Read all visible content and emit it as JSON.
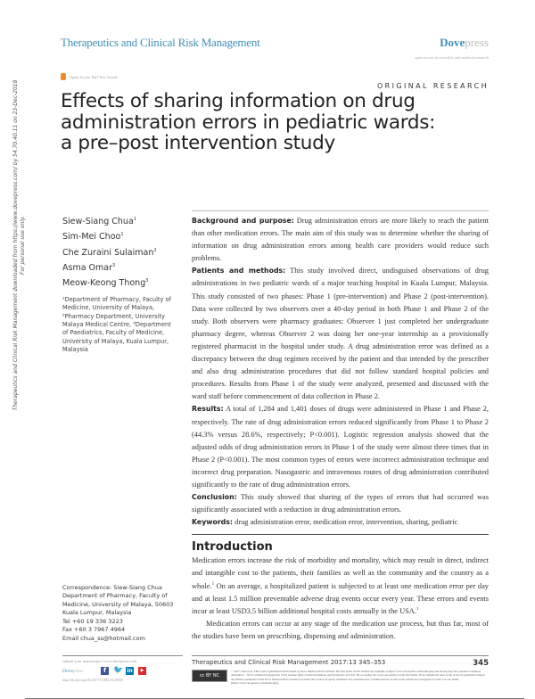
{
  "header": {
    "journal": "Therapeutics and Clinical Risk Management",
    "publisher_a": "Dove",
    "publisher_b": "press",
    "tagline": "open access to scientific and medical research",
    "open_access": "Open Access Full Text Article",
    "article_type": "ORIGINAL RESEARCH"
  },
  "title_lines": [
    "Effects of sharing information on drug",
    "administration errors in pediatric wards:",
    "a pre–post intervention study"
  ],
  "side_notice": [
    "Therapeutics and Clinical Risk Management downloaded from https://www.dovepress.com/ by 54.70.40.11 on 23-Dec-2018",
    "For personal use only."
  ],
  "authors": [
    {
      "name": "Siew-Siang Chua",
      "aff": "1"
    },
    {
      "name": "Sim-Mei Choo",
      "aff": "1"
    },
    {
      "name": "Che Zuraini Sulaiman",
      "aff": "2"
    },
    {
      "name": "Asma Omar",
      "aff": "3"
    },
    {
      "name": "Meow-Keong Thong",
      "aff": "3"
    }
  ],
  "affiliations": "¹Department of Pharmacy, Faculty of Medicine, University of Malaya, ²Pharmacy Department, University Malaya Medical Centre, ³Department of Paediatrics, Faculty of Medicine, University of Malaya, Kuala Lumpur, Malaysia",
  "abstract": {
    "background_label": "Background and purpose:",
    "background": "Drug administration errors are more likely to reach the patient than other medication errors. The main aim of this study was to determine whether the sharing of information on drug administration errors among health care providers would reduce such problems.",
    "methods_label": "Patients and methods:",
    "methods": "This study involved direct, undisguised observations of drug administrations in two pediatric wards of a major teaching hospital in Kuala Lumpur, Malaysia. This study consisted of two phases: Phase 1 (pre-intervention) and Phase 2 (post-intervention). Data were collected by two observers over a 40-day period in both Phase 1 and Phase 2 of the study. Both observers were pharmacy graduates: Observer 1 just completed her undergraduate pharmacy degree, whereas Observer 2 was doing her one-year internship as a provisionally registered pharmacist in the hospital under study. A drug administration error was defined as a discrepancy between the drug regimen received by the patient and that intended by the prescriber and also drug administration procedures that did not follow standard hospital policies and procedures. Results from Phase 1 of the study were analyzed, presented and discussed with the ward staff before commencement of data collection in Phase 2.",
    "results_label": "Results:",
    "results": "A total of 1,284 and 1,401 doses of drugs were administered in Phase 1 and Phase 2, respectively. The rate of drug administration errors reduced significantly from Phase 1 to Phase 2 (44.3% versus 28.6%, respectively; P<0.001). Logistic regression analysis showed that the adjusted odds of drug administration errors in Phase 1 of the study were almost three times that in Phase 2 (P<0.001). The most common types of errors were incorrect administration technique and incorrect drug preparation. Nasogastric and intravenous routes of drug administration contributed significantly to the rate of drug administration errors.",
    "conclusion_label": "Conclusion:",
    "conclusion": "This study showed that sharing of the types of errors that had occurred was significantly associated with a reduction in drug administration errors.",
    "keywords_label": "Keywords:",
    "keywords": "drug administration error, medication error, intervention, sharing, pediatric"
  },
  "introduction": {
    "heading": "Introduction",
    "p1": "Medication errors increase the risk of morbidity and mortality, which may result in direct, indirect and intangible cost to the patients, their families as well as the community and the country as a whole.",
    "p1_ref": "1",
    "p1b": " On an average, a hospitalized patient is subjected to at least one medication error per day and at least 1.5 million preventable adverse drug events occur every year. These errors and events incur at least USD3.5 billion additional hospital costs annually in the USA.",
    "p1b_ref": "1",
    "p2": "Medication errors can occur at any stage of the medication use process, but thus far, most of the studies have been on prescribing, dispensing and administration."
  },
  "correspondence": [
    "Correspondence: Siew-Siang Chua",
    "Department of Pharmacy, Faculty of",
    "Medicine, University of Malaya, 50603",
    "Kuala Lumpur, Malaysia",
    "Tel +60 19 336 3223",
    "Fax +60 3 7967 4964",
    "Email chua_ss@hotmail.com"
  ],
  "footer": {
    "submit": "submit your manuscript | www.dovepress.com",
    "dove_a": "Dove",
    "dove_b": "press",
    "doi": "http://dx.doi.org/10.2147/TCRM.S128004",
    "citation": "Therapeutics and Clinical Risk Management 2017:13 345–353",
    "page": "345",
    "cc_label": "cc BY NC",
    "license": "© 2017 Chua et al. This work is published and licensed by Dove Medical Press Limited. The full terms of this license are available at https://www.dovepress.com/terms.php and incorporate the Creative Commons Attribution – Non Commercial (unported, v3.0) License (http://creativecommons.org/licenses/by-nc/3.0/). By accessing the work you hereby accept the Terms. Non-commercial uses of the work are permitted without any further permission from Dove Medical Press Limited, provided the work is properly attributed. For permission for commercial use of this work, please see paragraphs 4.2 and 5 of our Terms (https://www.dovepress.com/terms.php)."
  },
  "colors": {
    "brand": "#3f8fb8",
    "open_access": "#f08a24",
    "facebook": "#3b5998",
    "twitter": "#1da1f2",
    "linkedin": "#0077b5",
    "youtube": "#e0282e"
  }
}
